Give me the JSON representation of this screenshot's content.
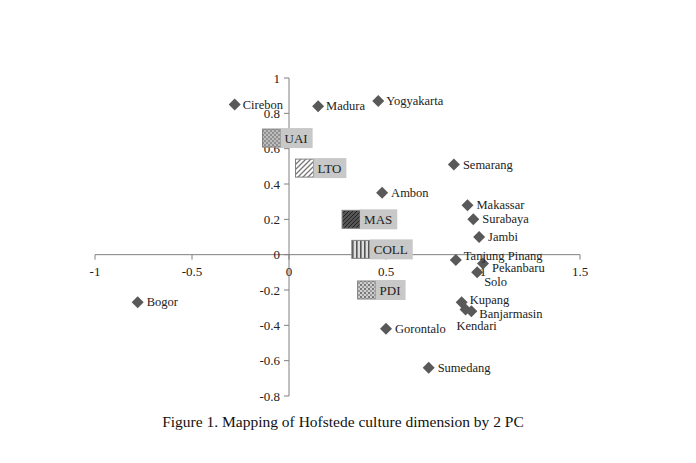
{
  "chart_data": {
    "type": "scatter",
    "caption": "Figure 1. Mapping of Hofstede culture dimension by 2 PC",
    "xlim": [
      -1,
      1.5
    ],
    "xticks": [
      -1,
      -0.5,
      0,
      0.5,
      1,
      1.5
    ],
    "ylim": [
      -0.8,
      1
    ],
    "yticks": [
      -0.8,
      -0.6,
      -0.4,
      -0.2,
      0,
      0.2,
      0.4,
      0.6,
      0.8,
      1
    ],
    "grid": false,
    "series": [
      {
        "type": "scatter",
        "marker": "diamond",
        "color": "#595959",
        "labels": [
          "Cirebon",
          "Madura",
          "Yogyakarta",
          "Semarang",
          "Ambon",
          "Makassar",
          "Surabaya",
          "Jambi",
          "Tanjung Pinang",
          "Pekanbaru",
          "Solo",
          "Bogor",
          "Kupang",
          "Banjarmasin",
          "Kendari",
          "Gorontalo",
          "Sumedang"
        ],
        "x": [
          -0.28,
          0.15,
          0.46,
          0.85,
          0.48,
          0.92,
          0.95,
          0.98,
          0.86,
          1.0,
          0.97,
          -0.78,
          0.89,
          0.94,
          0.91,
          0.5,
          0.72
        ],
        "values": [
          0.85,
          0.84,
          0.87,
          0.51,
          0.35,
          0.28,
          0.2,
          0.1,
          -0.03,
          -0.05,
          -0.1,
          -0.27,
          -0.27,
          -0.32,
          -0.31,
          -0.42,
          -0.64
        ]
      },
      {
        "type": "scatter",
        "marker": "square",
        "color": "#808080",
        "labels": [
          "UAI",
          "LTO",
          "MAS",
          "COLL",
          "PDI"
        ],
        "x": [
          -0.09,
          0.08,
          0.32,
          0.37,
          0.4
        ],
        "values": [
          0.66,
          0.49,
          0.2,
          0.03,
          -0.2
        ]
      }
    ]
  }
}
